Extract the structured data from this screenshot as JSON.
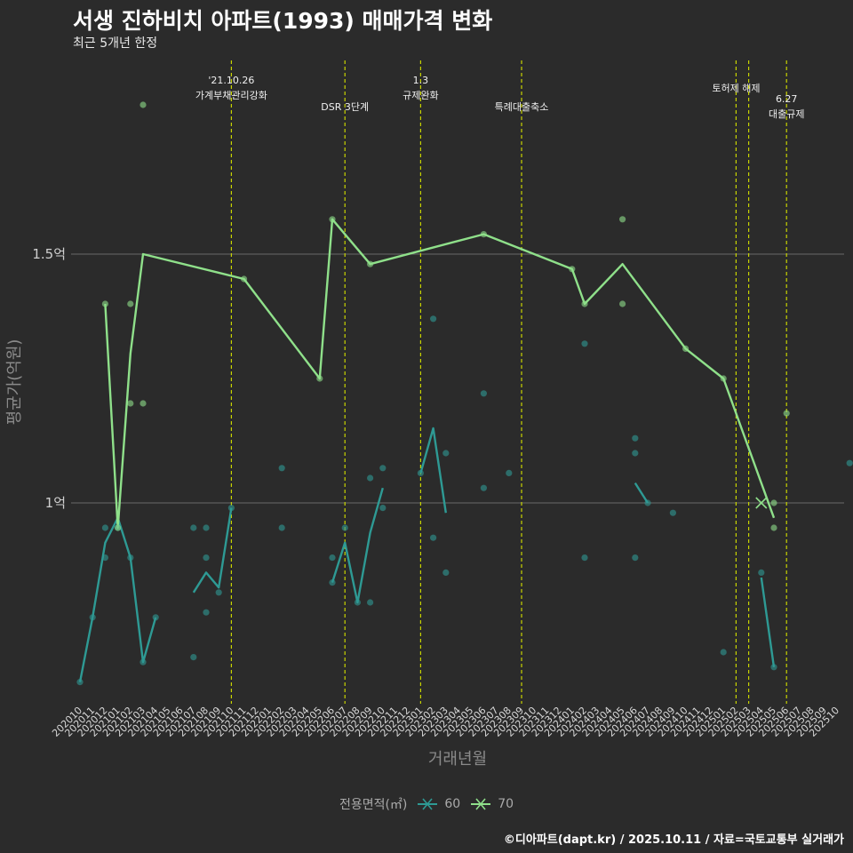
{
  "title": "서생 진하비치 아파트(1993) 매매가격 변화",
  "subtitle": "최근 5개년 한정",
  "caption": "©디아파트(dapt.kr) / 2025.10.11 / 자료=국토교통부 실거래가",
  "colors": {
    "background": "#2b2b2b",
    "series60": "#2e9a94",
    "series70": "#8fe08a",
    "eventLine": "#c8d400",
    "grid": "#6a6a6a"
  },
  "chart_data": {
    "type": "line",
    "title": "서생 진하비치 아파트(1993) 매매가격 변화",
    "xlabel": "거래년월",
    "ylabel": "평균가(억원)",
    "ylim": [
      0.6,
      1.9
    ],
    "yticks": [
      {
        "value": 1.0,
        "label": "1억"
      },
      {
        "value": 1.5,
        "label": "1.5억"
      }
    ],
    "x_categories": [
      "202010",
      "202011",
      "202012",
      "202101",
      "202102",
      "202103",
      "202104",
      "202105",
      "202106",
      "202107",
      "202108",
      "202109",
      "202110",
      "202111",
      "202112",
      "202201",
      "202202",
      "202203",
      "202204",
      "202205",
      "202206",
      "202207",
      "202208",
      "202209",
      "202210",
      "202211",
      "202212",
      "202301",
      "202302",
      "202303",
      "202304",
      "202305",
      "202306",
      "202307",
      "202308",
      "202309",
      "202310",
      "202311",
      "202312",
      "202401",
      "202402",
      "202403",
      "202404",
      "202405",
      "202406",
      "202407",
      "202408",
      "202409",
      "202410",
      "202411",
      "202412",
      "202501",
      "202502",
      "202503",
      "202504",
      "202505",
      "202506",
      "202507",
      "202508",
      "202509",
      "202510"
    ],
    "legend_title": "전용면적(㎡)",
    "events": [
      {
        "x": 12,
        "label1": "'21.10.26",
        "label2": "가계부채관리강화",
        "level": "top"
      },
      {
        "x": 21,
        "label1": "",
        "label2": "DSR 3단계",
        "level": "low"
      },
      {
        "x": 27,
        "label1": "1.3",
        "label2": "규제완화",
        "level": "top"
      },
      {
        "x": 35,
        "label1": "",
        "label2": "특례대출축소",
        "level": "low"
      },
      {
        "x": 52,
        "label1": "",
        "label2": "토허제 해제",
        "level": "mid"
      },
      {
        "x": 53,
        "label1": "",
        "label2": "",
        "level": "none"
      },
      {
        "x": 56,
        "label1": "6.27",
        "label2": "대출규제",
        "level": "low2"
      }
    ],
    "series": [
      {
        "name": "60",
        "line_segments": [
          [
            [
              0,
              0.64
            ],
            [
              1,
              0.77
            ],
            [
              2,
              0.92
            ],
            [
              3,
              0.97
            ],
            [
              4,
              0.89
            ],
            [
              5,
              0.68
            ],
            [
              6,
              0.77
            ]
          ],
          [
            [
              9,
              0.82
            ],
            [
              10,
              0.86
            ],
            [
              11,
              0.83
            ],
            [
              12,
              0.99
            ]
          ],
          [
            [
              20,
              0.84
            ],
            [
              21,
              0.92
            ],
            [
              22,
              0.8
            ],
            [
              23,
              0.94
            ],
            [
              24,
              1.03
            ]
          ],
          [
            [
              27,
              1.06
            ],
            [
              28,
              1.15
            ],
            [
              29,
              0.98
            ]
          ],
          [
            [
              44,
              1.04
            ],
            [
              45,
              1.0
            ]
          ],
          [
            [
              54,
              0.85
            ],
            [
              55,
              0.67
            ]
          ]
        ],
        "points": [
          [
            0,
            0.64
          ],
          [
            1,
            0.77
          ],
          [
            2,
            0.89
          ],
          [
            2,
            0.95
          ],
          [
            3,
            0.95
          ],
          [
            4,
            0.89
          ],
          [
            5,
            0.68
          ],
          [
            6,
            0.77
          ],
          [
            9,
            0.95
          ],
          [
            9,
            0.69
          ],
          [
            10,
            0.95
          ],
          [
            10,
            0.89
          ],
          [
            10,
            0.78
          ],
          [
            11,
            0.82
          ],
          [
            12,
            0.99
          ],
          [
            16,
            1.07
          ],
          [
            16,
            0.95
          ],
          [
            20,
            0.89
          ],
          [
            20,
            0.84
          ],
          [
            21,
            0.95
          ],
          [
            22,
            0.8
          ],
          [
            23,
            1.05
          ],
          [
            23,
            0.8
          ],
          [
            24,
            1.07
          ],
          [
            24,
            0.99
          ],
          [
            27,
            1.06
          ],
          [
            28,
            1.37
          ],
          [
            28,
            0.93
          ],
          [
            29,
            1.1
          ],
          [
            29,
            0.86
          ],
          [
            32,
            1.22
          ],
          [
            32,
            1.03
          ],
          [
            34,
            1.06
          ],
          [
            40,
            1.32
          ],
          [
            40,
            0.89
          ],
          [
            44,
            1.13
          ],
          [
            44,
            1.1
          ],
          [
            44,
            0.89
          ],
          [
            45,
            1.0
          ],
          [
            47,
            0.98
          ],
          [
            51,
            0.7
          ],
          [
            54,
            0.86
          ],
          [
            55,
            0.67
          ],
          [
            61,
            1.08
          ]
        ]
      },
      {
        "name": "70",
        "line_segments": [
          [
            [
              2,
              1.4
            ],
            [
              3,
              0.95
            ],
            [
              4,
              1.3
            ],
            [
              5,
              1.5
            ],
            [
              13,
              1.45
            ],
            [
              19,
              1.25
            ],
            [
              20,
              1.57
            ],
            [
              23,
              1.48
            ],
            [
              32,
              1.54
            ],
            [
              39,
              1.47
            ],
            [
              40,
              1.4
            ],
            [
              43,
              1.48
            ],
            [
              48,
              1.31
            ],
            [
              51,
              1.25
            ],
            [
              55,
              0.97
            ]
          ]
        ],
        "points": [
          [
            2,
            1.4
          ],
          [
            3,
            0.95
          ],
          [
            4,
            1.4
          ],
          [
            4,
            1.2
          ],
          [
            5,
            1.2
          ],
          [
            5,
            1.8
          ],
          [
            13,
            1.45
          ],
          [
            19,
            1.25
          ],
          [
            20,
            1.57
          ],
          [
            23,
            1.48
          ],
          [
            32,
            1.54
          ],
          [
            39,
            1.47
          ],
          [
            40,
            1.4
          ],
          [
            43,
            1.57
          ],
          [
            43,
            1.4
          ],
          [
            48,
            1.31
          ],
          [
            51,
            1.25
          ],
          [
            55,
            1.0
          ],
          [
            55,
            0.95
          ],
          [
            56,
            1.18
          ]
        ],
        "cross_marker": [
          54,
          1.0
        ]
      }
    ]
  }
}
